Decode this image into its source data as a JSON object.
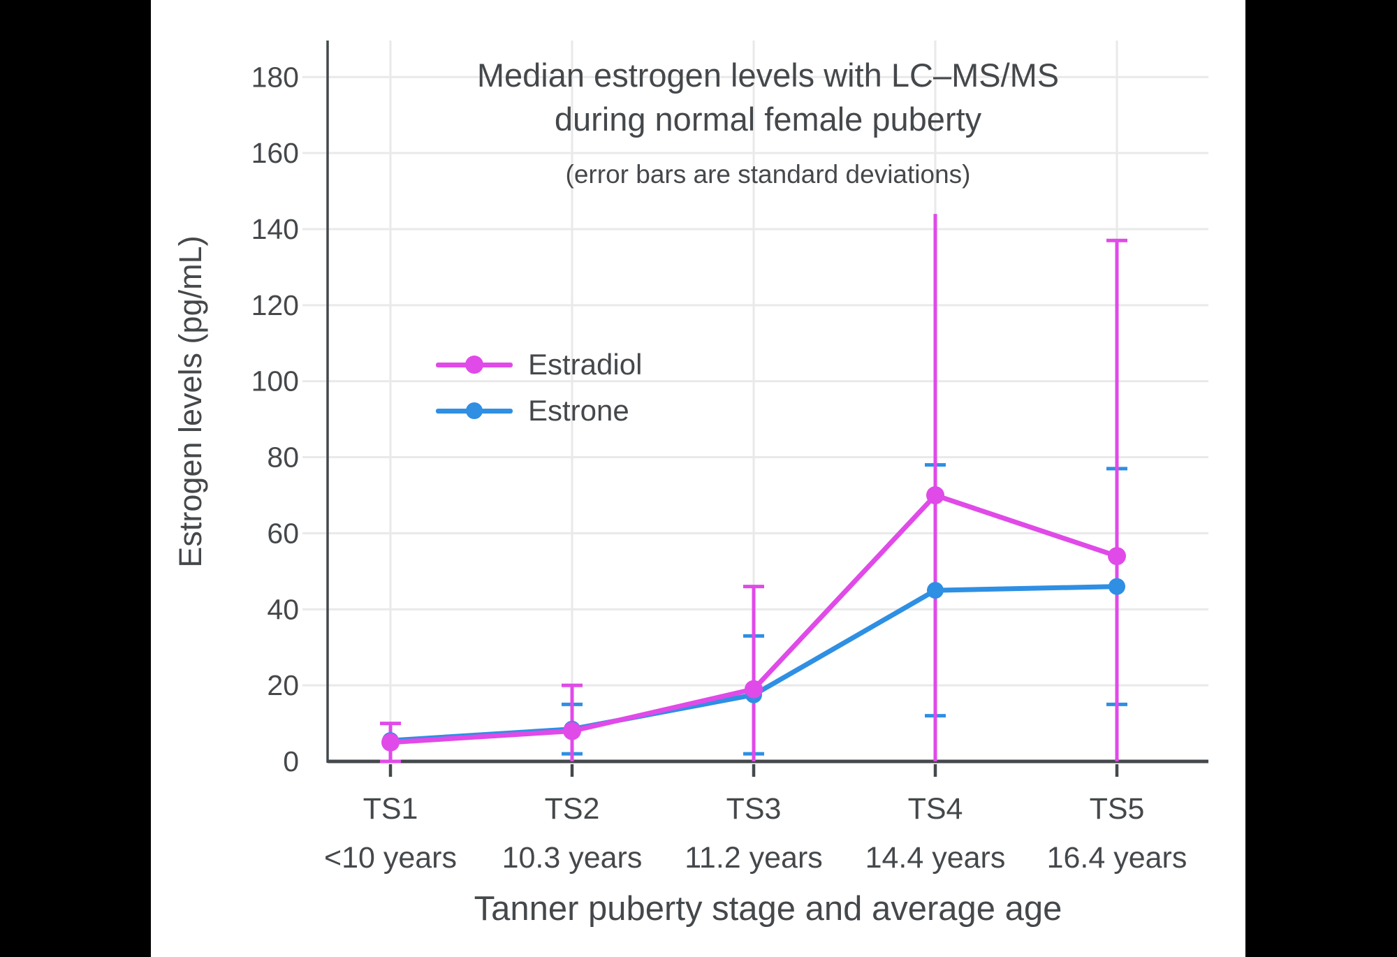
{
  "page": {
    "background": "#000000",
    "chart_background": "#FFFFFF",
    "text_color": "#45484B",
    "grid_color": "#E9E9E9",
    "axis_color": "#45484B"
  },
  "chart_data": {
    "type": "line",
    "title": "Median estrogen levels with LC–MS/MS during normal female puberty",
    "title_lines": [
      "Median estrogen levels with LC–MS/MS",
      "during normal female puberty"
    ],
    "subtitle": "(error bars are standard deviations)",
    "xlabel": "Tanner puberty stage and average age",
    "ylabel": "Estrogen levels (pg/mL)",
    "x_categories": [
      {
        "stage": "TS1",
        "age": "<10 years"
      },
      {
        "stage": "TS2",
        "age": "10.3 years"
      },
      {
        "stage": "TS3",
        "age": "11.2 years"
      },
      {
        "stage": "TS4",
        "age": "14.4 years"
      },
      {
        "stage": "TS5",
        "age": "16.4 years"
      }
    ],
    "y_ticks": [
      0,
      20,
      40,
      60,
      80,
      100,
      120,
      140,
      160,
      180
    ],
    "ylim": [
      0,
      189
    ],
    "grid": true,
    "error_bar_meaning": "standard deviations",
    "legend_position": "inside-upper-left",
    "series": [
      {
        "name": "Estradiol",
        "color": "#E04AE8",
        "values": [
          5,
          8,
          19,
          70,
          54
        ],
        "sd": [
          5,
          12,
          27,
          74,
          83
        ],
        "top_cap": [
          true,
          true,
          true,
          false,
          true
        ]
      },
      {
        "name": "Estrone",
        "color": "#2E8FE3",
        "values": [
          5.5,
          8.5,
          17.5,
          45,
          46
        ],
        "sd": [
          null,
          6.5,
          15.5,
          33,
          31
        ],
        "top_cap": [
          null,
          true,
          true,
          true,
          true
        ]
      }
    ]
  }
}
